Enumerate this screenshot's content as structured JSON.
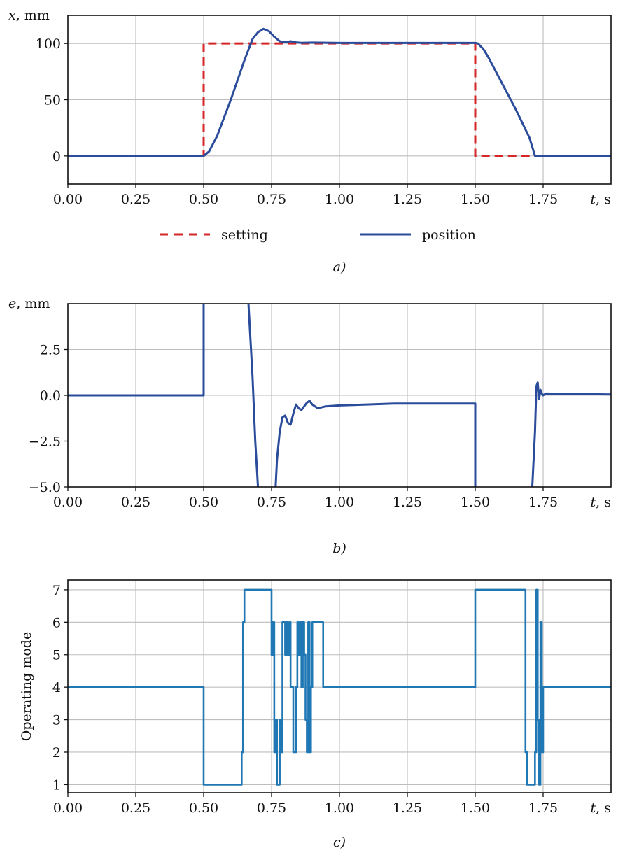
{
  "chart_data": [
    {
      "panel": "a",
      "type": "line",
      "caption": "a)",
      "xlabel": {
        "sym": "t",
        "unit": ", s"
      },
      "ylabel": {
        "sym": "x",
        "unit": ", mm"
      },
      "xlim": [
        0,
        2.0
      ],
      "ylim": [
        -25,
        125
      ],
      "xticks": [
        0,
        0.25,
        0.5,
        0.75,
        1.0,
        1.25,
        1.5,
        1.75
      ],
      "xtick_labels": [
        "0.00",
        "0.25",
        "0.50",
        "0.75",
        "1.00",
        "1.25",
        "1.50",
        "1.75"
      ],
      "yticks": [
        0,
        50,
        100
      ],
      "ytick_labels": [
        "0",
        "50",
        "100"
      ],
      "grid": true,
      "legend": {
        "placement": "bottom",
        "entries": [
          "setting",
          "position"
        ]
      },
      "series": [
        {
          "name": "setting",
          "color": "#d62728",
          "dash": true,
          "x": [
            0,
            0.5,
            0.5,
            1.5,
            1.5,
            1.72
          ],
          "y": [
            0,
            0,
            100,
            100,
            0,
            0
          ]
        },
        {
          "name": "position",
          "color": "#2b4c9b",
          "dash": false,
          "x": [
            0,
            0.5,
            0.52,
            0.55,
            0.6,
            0.65,
            0.68,
            0.7,
            0.72,
            0.74,
            0.76,
            0.78,
            0.8,
            0.82,
            0.84,
            0.86,
            0.9,
            1.0,
            1.5,
            1.51,
            1.53,
            1.55,
            1.6,
            1.65,
            1.7,
            1.72,
            2.0
          ],
          "y": [
            0,
            0,
            4,
            18,
            50,
            85,
            104,
            110,
            113,
            111,
            106,
            102,
            101,
            102,
            101,
            100.6,
            100.8,
            100.5,
            100.5,
            100,
            95,
            87,
            64,
            41,
            16,
            0,
            0
          ]
        }
      ]
    },
    {
      "panel": "b",
      "type": "line",
      "caption": "b)",
      "xlabel": {
        "sym": "t",
        "unit": ", s"
      },
      "ylabel": {
        "sym": "e",
        "unit": ", mm"
      },
      "xlim": [
        0,
        2.0
      ],
      "ylim": [
        -5,
        5
      ],
      "xticks": [
        0,
        0.25,
        0.5,
        0.75,
        1.0,
        1.25,
        1.5,
        1.75
      ],
      "xtick_labels": [
        "0.00",
        "0.25",
        "0.50",
        "0.75",
        "1.00",
        "1.25",
        "1.50",
        "1.75"
      ],
      "yticks": [
        -5,
        -2.5,
        0,
        2.5
      ],
      "ytick_labels": [
        "−5.0",
        "−2.5",
        "0.0",
        "2.5"
      ],
      "grid": true,
      "series": [
        {
          "color": "#2b4c9b",
          "x": [
            0,
            0.5,
            0.5,
            0.5,
            null,
            0.665,
            0.68,
            0.69,
            0.7,
            null,
            0.765,
            0.77,
            0.78,
            0.79,
            0.8,
            0.81,
            0.82,
            0.83,
            0.84,
            0.85,
            0.86,
            0.87,
            0.88,
            0.89,
            0.9,
            0.92,
            0.95,
            1.0,
            1.1,
            1.2,
            1.3,
            1.4,
            1.5,
            1.5,
            null,
            1.71,
            1.72,
            1.725,
            1.73,
            1.735,
            1.74,
            1.745,
            1.75,
            1.76,
            2.0
          ],
          "y": [
            0,
            0,
            0,
            5,
            null,
            5,
            1,
            -2.5,
            -5,
            null,
            -5,
            -3.5,
            -2,
            -1.2,
            -1.1,
            -1.5,
            -1.6,
            -1.0,
            -0.5,
            -0.7,
            -0.8,
            -0.6,
            -0.4,
            -0.3,
            -0.5,
            -0.7,
            -0.6,
            -0.55,
            -0.5,
            -0.45,
            -0.45,
            -0.45,
            -0.45,
            -5,
            null,
            -5,
            -2,
            0.5,
            0.7,
            -0.2,
            0.3,
            0.1,
            0.0,
            0.1,
            0.05
          ]
        }
      ]
    },
    {
      "panel": "c",
      "type": "line",
      "caption": "c)",
      "xlabel": {
        "sym": "t",
        "unit": ", s"
      },
      "ylabel": {
        "sym": "",
        "unit": "Operating mode"
      },
      "xlim": [
        0,
        2.0
      ],
      "ylim": [
        0.75,
        7.3
      ],
      "xticks": [
        0,
        0.25,
        0.5,
        0.75,
        1.0,
        1.25,
        1.5,
        1.75
      ],
      "xtick_labels": [
        "0.00",
        "0.25",
        "0.50",
        "0.75",
        "1.00",
        "1.25",
        "1.50",
        "1.75"
      ],
      "yticks": [
        1,
        2,
        3,
        4,
        5,
        6,
        7
      ],
      "ytick_labels": [
        "1",
        "2",
        "3",
        "4",
        "5",
        "6",
        "7"
      ],
      "grid": true,
      "series": [
        {
          "color": "#1f77b4",
          "step": true,
          "x": [
            0,
            0.5,
            0.64,
            0.645,
            0.65,
            0.75,
            0.755,
            0.76,
            0.765,
            0.77,
            0.78,
            0.785,
            0.79,
            0.8,
            0.805,
            0.81,
            0.815,
            0.82,
            0.83,
            0.84,
            0.845,
            0.85,
            0.855,
            0.86,
            0.865,
            0.87,
            0.875,
            0.88,
            0.885,
            0.89,
            0.895,
            0.9,
            0.94,
            1.5,
            1.685,
            1.69,
            1.72,
            1.725,
            1.73,
            1.735,
            1.74,
            1.745,
            1.75,
            1.755,
            1.76
          ],
          "y": [
            4,
            1,
            2,
            6,
            7,
            5,
            6,
            2,
            3,
            1,
            3,
            2,
            6,
            5,
            6,
            5,
            6,
            4,
            2,
            4,
            6,
            5,
            6,
            4,
            6,
            5,
            3,
            2,
            6,
            2,
            4,
            6,
            4,
            7,
            2,
            1,
            2,
            7,
            3,
            1,
            6,
            2,
            4,
            4,
            4
          ]
        }
      ]
    }
  ]
}
